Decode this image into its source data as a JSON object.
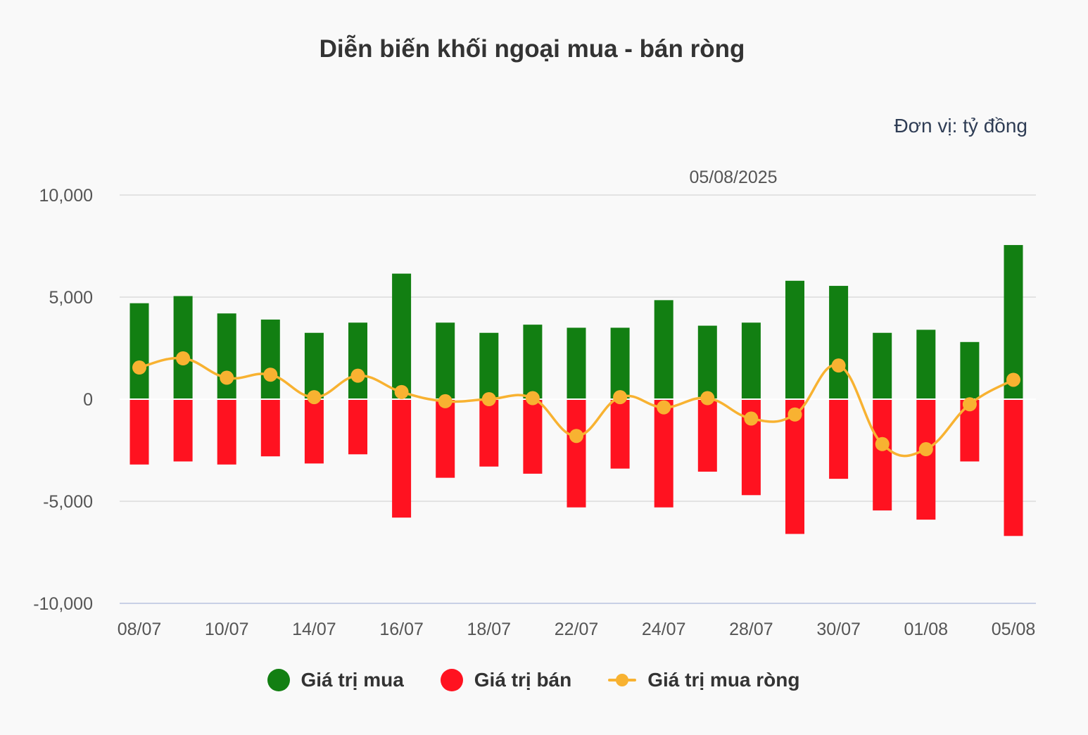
{
  "chart_data": {
    "type": "bar",
    "title": "Diễn biến khối ngoại mua - bán ròng",
    "unit_label": "Đơn vị: tỷ đồng",
    "date_label": "05/08/2025",
    "x_tick_labels": [
      "08/07",
      "10/07",
      "14/07",
      "16/07",
      "18/07",
      "22/07",
      "24/07",
      "28/07",
      "30/07",
      "01/08",
      "05/08"
    ],
    "y_tick_labels": [
      "10,000",
      "5,000",
      "0",
      "-5,000",
      "-10,000"
    ],
    "y_ticks": [
      10000,
      5000,
      0,
      -5000,
      -10000
    ],
    "ylim": [
      -10000,
      10000
    ],
    "grid": true,
    "legend_position": "bottom",
    "bar_count": 21,
    "series": [
      {
        "name": "Giá trị mua",
        "type": "bar",
        "color": "#127f12",
        "values": [
          4700,
          5050,
          4200,
          3900,
          3250,
          3750,
          6150,
          3750,
          3250,
          3650,
          3500,
          3500,
          4850,
          3600,
          3750,
          5800,
          5550,
          3250,
          3400,
          2800,
          7550
        ]
      },
      {
        "name": "Giá trị bán",
        "type": "bar",
        "color": "#ff1220",
        "values": [
          -3200,
          -3050,
          -3200,
          -2800,
          -3150,
          -2700,
          -5800,
          -3850,
          -3300,
          -3650,
          -5300,
          -3400,
          -5300,
          -3550,
          -4700,
          -6600,
          -3900,
          -5450,
          -5900,
          -3050,
          -6700
        ]
      },
      {
        "name": "Giá trị mua ròng",
        "type": "line",
        "color": "#f8b231",
        "values": [
          1550,
          2000,
          1050,
          1200,
          100,
          1150,
          350,
          -100,
          0,
          50,
          -1800,
          100,
          -400,
          50,
          -950,
          -750,
          1650,
          -2200,
          -2450,
          -250,
          950
        ]
      }
    ]
  }
}
